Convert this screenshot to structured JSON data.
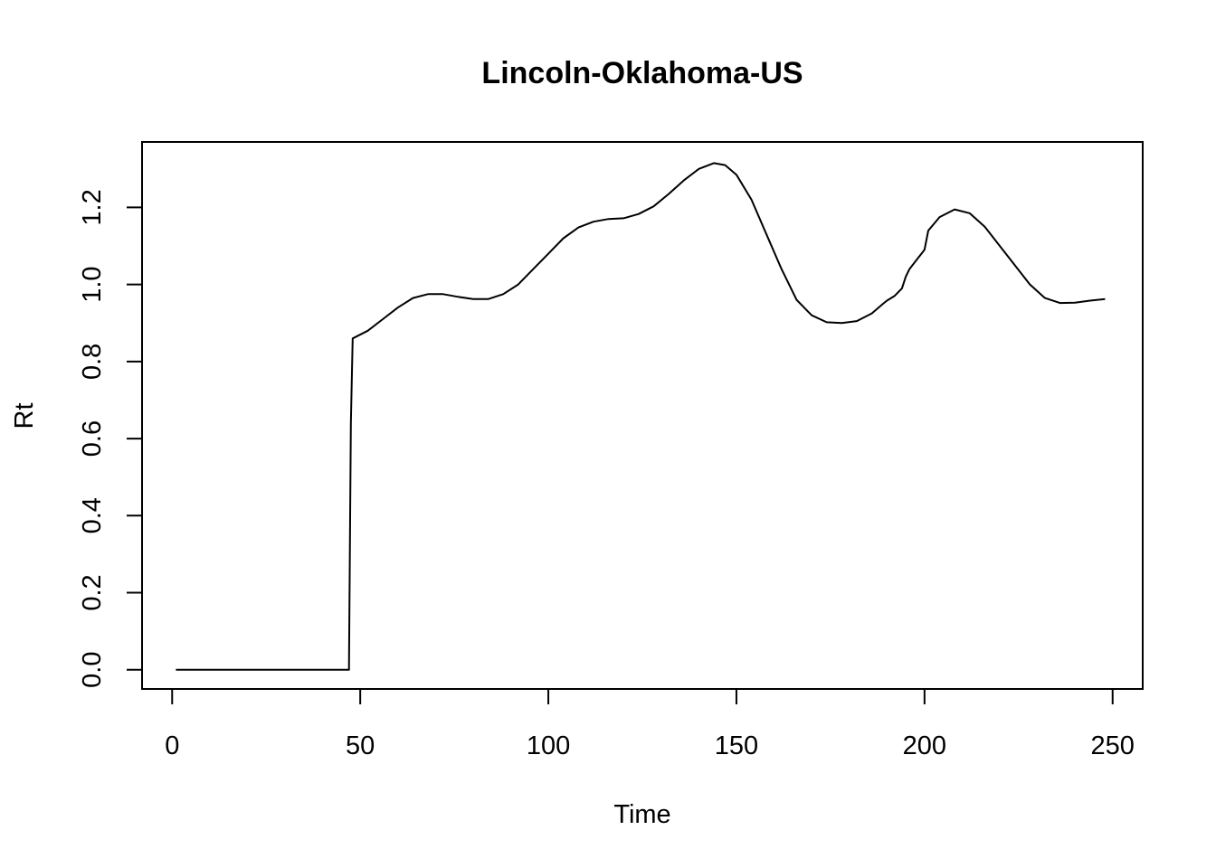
{
  "chart_data": {
    "type": "line",
    "title": "Lincoln-Oklahoma-US",
    "xlabel": "Time",
    "ylabel": "Rt",
    "xlim": [
      -8,
      258
    ],
    "ylim": [
      -0.05,
      1.37
    ],
    "xticks": [
      0,
      50,
      100,
      150,
      200,
      250
    ],
    "yticks": [
      0.0,
      0.2,
      0.4,
      0.6,
      0.8,
      1.0,
      1.2
    ],
    "xtick_labels": [
      "0",
      "50",
      "100",
      "150",
      "200",
      "250"
    ],
    "ytick_labels": [
      "0.0",
      "0.2",
      "0.4",
      "0.6",
      "0.8",
      "1.0",
      "1.2"
    ],
    "grid": false,
    "series": [
      {
        "color": "#000000",
        "x": [
          1,
          10,
          20,
          30,
          40,
          47,
          47.5,
          48,
          52,
          56,
          60,
          64,
          68,
          72,
          76,
          80,
          84,
          88,
          92,
          96,
          100,
          104,
          108,
          112,
          116,
          120,
          124,
          128,
          132,
          136,
          140,
          144,
          147,
          150,
          154,
          158,
          162,
          166,
          170,
          174,
          178,
          182,
          186,
          189,
          190,
          192,
          194,
          195,
          196,
          198,
          200,
          201,
          204,
          208,
          212,
          216,
          220,
          224,
          228,
          232,
          236,
          240,
          244,
          248
        ],
        "y": [
          0.0,
          0.0,
          0.0,
          0.0,
          0.0,
          0.0,
          0.64,
          0.86,
          0.88,
          0.91,
          0.94,
          0.965,
          0.975,
          0.975,
          0.968,
          0.962,
          0.962,
          0.975,
          1.0,
          1.04,
          1.08,
          1.12,
          1.148,
          1.163,
          1.17,
          1.172,
          1.183,
          1.203,
          1.235,
          1.27,
          1.3,
          1.315,
          1.31,
          1.285,
          1.22,
          1.13,
          1.04,
          0.96,
          0.92,
          0.902,
          0.9,
          0.905,
          0.925,
          0.95,
          0.958,
          0.97,
          0.99,
          1.02,
          1.04,
          1.065,
          1.09,
          1.14,
          1.175,
          1.195,
          1.185,
          1.15,
          1.1,
          1.05,
          1.0,
          0.965,
          0.952,
          0.953,
          0.958,
          0.962
        ]
      }
    ]
  }
}
